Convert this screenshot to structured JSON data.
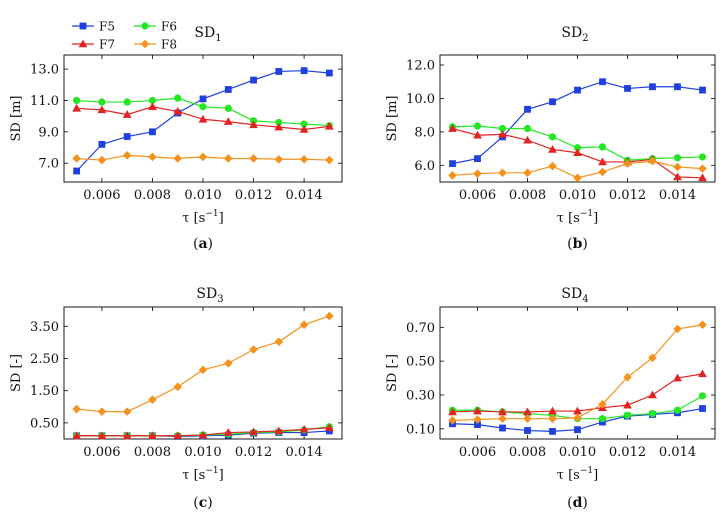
{
  "chart_data": [
    {
      "type": "line",
      "id": "a",
      "title_main": "SD",
      "title_sub": "1",
      "caption_letter": "a",
      "ylabel": "SD [m]",
      "xlabel_main": "τ [s",
      "xlabel_sup": "−1",
      "xlabel_close": "]",
      "xlim": [
        0.0045,
        0.0155
      ],
      "ylim": [
        5.8,
        13.9
      ],
      "xticks": [
        0.006,
        0.008,
        0.01,
        0.012,
        0.014
      ],
      "xticklabels": [
        "0.006",
        "0.008",
        "0.010",
        "0.012",
        "0.014"
      ],
      "yticks": [
        7.0,
        9.0,
        11.0,
        13.0
      ],
      "yticklabels": [
        "7.0",
        "9.0",
        "11.0",
        "13.0"
      ],
      "x": [
        0.005,
        0.006,
        0.007,
        0.008,
        0.009,
        0.01,
        0.011,
        0.012,
        0.013,
        0.014,
        0.015
      ],
      "series": [
        {
          "name": "F5",
          "color": "#1f3fdf",
          "marker": "square",
          "values": [
            6.5,
            8.2,
            8.7,
            9.0,
            10.2,
            11.1,
            11.7,
            12.3,
            12.85,
            12.9,
            12.75
          ]
        },
        {
          "name": "F6",
          "color": "#22e822",
          "marker": "circle",
          "values": [
            11.0,
            10.9,
            10.9,
            11.0,
            11.15,
            10.6,
            10.5,
            9.7,
            9.6,
            9.5,
            9.4
          ]
        },
        {
          "name": "F7",
          "color": "#e52222",
          "marker": "triangle",
          "values": [
            10.5,
            10.4,
            10.1,
            10.6,
            10.3,
            9.8,
            9.65,
            9.45,
            9.3,
            9.15,
            9.35
          ]
        },
        {
          "name": "F8",
          "color": "#f5921e",
          "marker": "diamond",
          "values": [
            7.3,
            7.2,
            7.5,
            7.4,
            7.3,
            7.4,
            7.3,
            7.3,
            7.25,
            7.25,
            7.2
          ]
        }
      ],
      "legend": {
        "position": "top-left",
        "entries": [
          {
            "name": "F5",
            "color": "#1f3fdf",
            "marker": "square"
          },
          {
            "name": "F6",
            "color": "#22e822",
            "marker": "circle"
          },
          {
            "name": "F7",
            "color": "#e52222",
            "marker": "triangle"
          },
          {
            "name": "F8",
            "color": "#f5921e",
            "marker": "diamond"
          }
        ]
      }
    },
    {
      "type": "line",
      "id": "b",
      "title_main": "SD",
      "title_sub": "2",
      "caption_letter": "b",
      "ylabel": "SD [m]",
      "xlabel_main": "τ [s",
      "xlabel_sup": "−1",
      "xlabel_close": "]",
      "xlim": [
        0.0045,
        0.0155
      ],
      "ylim": [
        5.0,
        12.6
      ],
      "xticks": [
        0.006,
        0.008,
        0.01,
        0.012,
        0.014
      ],
      "xticklabels": [
        "0.006",
        "0.008",
        "0.010",
        "0.012",
        "0.014"
      ],
      "yticks": [
        6.0,
        8.0,
        10.0,
        12.0
      ],
      "yticklabels": [
        "6.0",
        "8.0",
        "10.0",
        "12.0"
      ],
      "x": [
        0.005,
        0.006,
        0.007,
        0.008,
        0.009,
        0.01,
        0.011,
        0.012,
        0.013,
        0.014,
        0.015
      ],
      "series": [
        {
          "name": "F5",
          "color": "#1f3fdf",
          "marker": "square",
          "values": [
            6.1,
            6.4,
            7.7,
            9.35,
            9.8,
            10.5,
            11.0,
            10.6,
            10.7,
            10.7,
            10.5
          ]
        },
        {
          "name": "F6",
          "color": "#22e822",
          "marker": "circle",
          "values": [
            8.3,
            8.35,
            8.2,
            8.2,
            7.7,
            7.05,
            7.1,
            6.3,
            6.4,
            6.45,
            6.5
          ]
        },
        {
          "name": "F7",
          "color": "#e52222",
          "marker": "triangle",
          "values": [
            8.2,
            7.8,
            7.85,
            7.5,
            6.95,
            6.75,
            6.2,
            6.2,
            6.35,
            5.3,
            5.25
          ]
        },
        {
          "name": "F8",
          "color": "#f5921e",
          "marker": "diamond",
          "values": [
            5.4,
            5.5,
            5.55,
            5.55,
            5.95,
            5.25,
            5.6,
            6.1,
            6.25,
            5.9,
            5.8
          ]
        }
      ]
    },
    {
      "type": "line",
      "id": "c",
      "title_main": "SD",
      "title_sub": "3",
      "caption_letter": "c",
      "ylabel": "SD [-]",
      "xlabel_main": "τ [s",
      "xlabel_sup": "−1",
      "xlabel_close": "]",
      "xlim": [
        0.0045,
        0.0155
      ],
      "ylim": [
        0.0,
        4.1
      ],
      "xticks": [
        0.006,
        0.008,
        0.01,
        0.012,
        0.014
      ],
      "xticklabels": [
        "0.006",
        "0.008",
        "0.010",
        "0.012",
        "0.014"
      ],
      "yticks": [
        0.5,
        1.5,
        2.5,
        3.5
      ],
      "yticklabels": [
        "0.50",
        "1.50",
        "2.50",
        "3.50"
      ],
      "x": [
        0.005,
        0.006,
        0.007,
        0.008,
        0.009,
        0.01,
        0.011,
        0.012,
        0.013,
        0.014,
        0.015
      ],
      "series": [
        {
          "name": "F5",
          "color": "#1f3fdf",
          "marker": "square",
          "values": [
            0.1,
            0.1,
            0.1,
            0.1,
            0.08,
            0.1,
            0.12,
            0.18,
            0.2,
            0.2,
            0.25
          ]
        },
        {
          "name": "F6",
          "color": "#22e822",
          "marker": "circle",
          "values": [
            0.1,
            0.1,
            0.1,
            0.1,
            0.1,
            0.12,
            0.15,
            0.2,
            0.22,
            0.28,
            0.38
          ]
        },
        {
          "name": "F7",
          "color": "#e52222",
          "marker": "triangle",
          "values": [
            0.1,
            0.1,
            0.1,
            0.1,
            0.1,
            0.12,
            0.2,
            0.22,
            0.25,
            0.3,
            0.35
          ]
        },
        {
          "name": "F8",
          "color": "#f5921e",
          "marker": "diamond",
          "values": [
            0.93,
            0.85,
            0.85,
            1.22,
            1.62,
            2.15,
            2.35,
            2.78,
            3.02,
            3.55,
            3.82
          ]
        }
      ]
    },
    {
      "type": "line",
      "id": "d",
      "title_main": "SD",
      "title_sub": "4",
      "caption_letter": "d",
      "ylabel": "SD [-]",
      "xlabel_main": "τ [s",
      "xlabel_sup": "−1",
      "xlabel_close": "]",
      "xlim": [
        0.0045,
        0.0155
      ],
      "ylim": [
        0.04,
        0.82
      ],
      "xticks": [
        0.006,
        0.008,
        0.01,
        0.012,
        0.014
      ],
      "xticklabels": [
        "0.006",
        "0.008",
        "0.010",
        "0.012",
        "0.014"
      ],
      "yticks": [
        0.1,
        0.3,
        0.5,
        0.7
      ],
      "yticklabels": [
        "0.10",
        "0.30",
        "0.50",
        "0.70"
      ],
      "x": [
        0.005,
        0.006,
        0.007,
        0.008,
        0.009,
        0.01,
        0.011,
        0.012,
        0.013,
        0.014,
        0.015
      ],
      "series": [
        {
          "name": "F5",
          "color": "#1f3fdf",
          "marker": "square",
          "values": [
            0.13,
            0.125,
            0.105,
            0.09,
            0.085,
            0.095,
            0.14,
            0.175,
            0.185,
            0.195,
            0.22
          ]
        },
        {
          "name": "F6",
          "color": "#22e822",
          "marker": "circle",
          "values": [
            0.21,
            0.21,
            0.2,
            0.19,
            0.18,
            0.16,
            0.16,
            0.18,
            0.19,
            0.21,
            0.295
          ]
        },
        {
          "name": "F7",
          "color": "#e52222",
          "marker": "triangle",
          "values": [
            0.2,
            0.205,
            0.2,
            0.2,
            0.205,
            0.205,
            0.225,
            0.24,
            0.3,
            0.4,
            0.425
          ]
        },
        {
          "name": "F8",
          "color": "#f5921e",
          "marker": "diamond",
          "values": [
            0.15,
            0.155,
            0.16,
            0.16,
            0.16,
            0.165,
            0.245,
            0.405,
            0.52,
            0.69,
            0.715
          ]
        }
      ]
    }
  ]
}
